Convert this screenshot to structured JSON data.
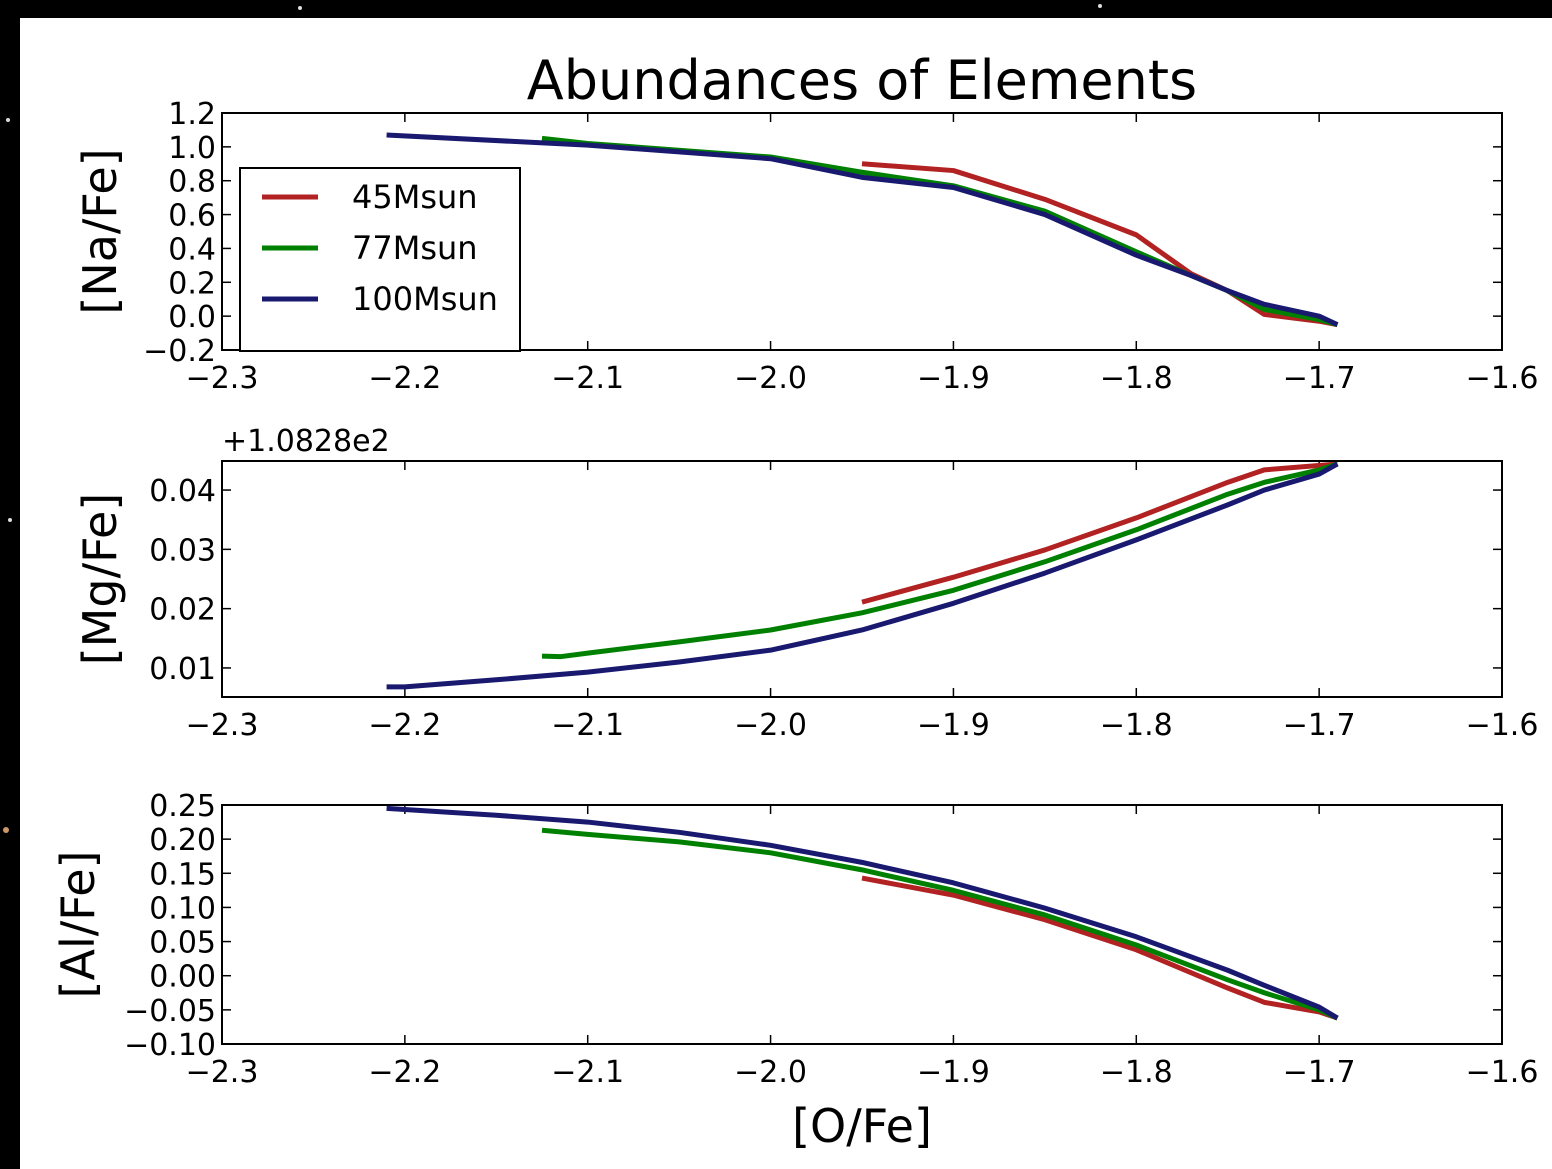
{
  "chart_data": [
    {
      "type": "line",
      "title": "Abundances of Elements",
      "ylabel": "[Na/Fe]",
      "xlim": [
        -2.3,
        -1.6
      ],
      "xticks": [
        {
          "value": -2.3,
          "label": "−2.3"
        },
        {
          "value": -2.2,
          "label": "−2.2"
        },
        {
          "value": -2.1,
          "label": "−2.1"
        },
        {
          "value": -2.0,
          "label": "−2.0"
        },
        {
          "value": -1.9,
          "label": "−1.9"
        },
        {
          "value": -1.8,
          "label": "−1.8"
        },
        {
          "value": -1.7,
          "label": "−1.7"
        },
        {
          "value": -1.6,
          "label": "−1.6"
        }
      ],
      "ylim": [
        -0.2,
        1.2
      ],
      "yticks": [
        {
          "value": -0.2,
          "label": "−0.2"
        },
        {
          "value": 0,
          "label": "0.0"
        },
        0.2,
        0.4,
        0.6,
        0.8,
        {
          "value": 1,
          "label": "1.0"
        },
        1.2
      ],
      "legend": "upper left",
      "series": [
        {
          "name": "45Msun",
          "color": "#b22222",
          "x": [
            -1.95,
            -1.9,
            -1.85,
            -1.8,
            -1.77,
            -1.75,
            -1.73,
            -1.7,
            -1.69
          ],
          "values": [
            0.9,
            0.86,
            0.69,
            0.48,
            0.25,
            0.15,
            0.01,
            -0.03,
            -0.05
          ]
        },
        {
          "name": "77Msun",
          "color": "#008000",
          "x": [
            -2.125,
            -2.1,
            -2.0,
            -1.95,
            -1.9,
            -1.85,
            -1.8,
            -1.77,
            -1.75,
            -1.73,
            -1.7,
            -1.69
          ],
          "values": [
            1.05,
            1.02,
            0.94,
            0.85,
            0.77,
            0.62,
            0.38,
            0.24,
            0.15,
            0.04,
            -0.02,
            -0.05
          ]
        },
        {
          "name": "100Msun",
          "color": "#191970",
          "x": [
            -2.21,
            -2.1,
            -2.0,
            -1.95,
            -1.9,
            -1.85,
            -1.8,
            -1.77,
            -1.75,
            -1.73,
            -1.7,
            -1.69
          ],
          "values": [
            1.07,
            1.01,
            0.93,
            0.82,
            0.76,
            0.6,
            0.36,
            0.24,
            0.15,
            0.07,
            0.0,
            -0.05
          ]
        }
      ]
    },
    {
      "type": "line",
      "ylabel": "[Mg/Fe]",
      "offset_text": "+1.0828e2",
      "xlim": [
        -2.3,
        -1.6
      ],
      "xticks": [
        {
          "value": -2.3,
          "label": "−2.3"
        },
        {
          "value": -2.2,
          "label": "−2.2"
        },
        {
          "value": -2.1,
          "label": "−2.1"
        },
        {
          "value": -2.0,
          "label": "−2.0"
        },
        {
          "value": -1.9,
          "label": "−1.9"
        },
        {
          "value": -1.8,
          "label": "−1.8"
        },
        {
          "value": -1.7,
          "label": "−1.7"
        },
        {
          "value": -1.6,
          "label": "−1.6"
        }
      ],
      "ylim": [
        0.0051,
        0.0449
      ],
      "yticks": [
        0.01,
        0.02,
        0.03,
        0.04
      ],
      "series": [
        {
          "color": "#b22222",
          "x": [
            -1.95,
            -1.9,
            -1.85,
            -1.8,
            -1.75,
            -1.73,
            -1.69
          ],
          "values": [
            0.0211,
            0.0253,
            0.0299,
            0.0353,
            0.0413,
            0.0434,
            0.0444
          ]
        },
        {
          "color": "#008000",
          "x": [
            -2.125,
            -2.115,
            -2.1,
            -2.05,
            -2.0,
            -1.95,
            -1.9,
            -1.85,
            -1.8,
            -1.75,
            -1.73,
            -1.7,
            -1.69
          ],
          "values": [
            0.012,
            0.0119,
            0.0125,
            0.0144,
            0.0164,
            0.0193,
            0.0231,
            0.0279,
            0.0333,
            0.0393,
            0.0413,
            0.0434,
            0.0444
          ]
        },
        {
          "color": "#191970",
          "x": [
            -2.21,
            -2.2,
            -2.15,
            -2.1,
            -2.05,
            -2.0,
            -1.95,
            -1.9,
            -1.85,
            -1.8,
            -1.75,
            -1.73,
            -1.7,
            -1.69
          ],
          "values": [
            0.0068,
            0.0068,
            0.008,
            0.0093,
            0.011,
            0.013,
            0.0164,
            0.0209,
            0.026,
            0.0316,
            0.0375,
            0.04,
            0.0427,
            0.0444
          ]
        }
      ]
    },
    {
      "type": "line",
      "ylabel": "[Al/Fe]",
      "xlabel": "[O/Fe]",
      "xlim": [
        -2.3,
        -1.6
      ],
      "xticks": [
        {
          "value": -2.3,
          "label": "−2.3"
        },
        {
          "value": -2.2,
          "label": "−2.2"
        },
        {
          "value": -2.1,
          "label": "−2.1"
        },
        {
          "value": -2.0,
          "label": "−2.0"
        },
        {
          "value": -1.9,
          "label": "−1.9"
        },
        {
          "value": -1.8,
          "label": "−1.8"
        },
        {
          "value": -1.7,
          "label": "−1.7"
        },
        {
          "value": -1.6,
          "label": "−1.6"
        }
      ],
      "ylim": [
        -0.1,
        0.25
      ],
      "yticks": [
        {
          "value": -0.1,
          "label": "−0.10"
        },
        {
          "value": -0.05,
          "label": "−0.05"
        },
        {
          "value": 0,
          "label": "0.00"
        },
        0.05,
        {
          "value": 0.1,
          "label": "0.10"
        },
        0.15,
        {
          "value": 0.2,
          "label": "0.20"
        },
        0.25
      ],
      "series": [
        {
          "color": "#b22222",
          "x": [
            -1.95,
            -1.9,
            -1.85,
            -1.8,
            -1.75,
            -1.73,
            -1.7,
            -1.69
          ],
          "values": [
            0.143,
            0.118,
            0.082,
            0.038,
            -0.018,
            -0.039,
            -0.053,
            -0.062
          ]
        },
        {
          "color": "#008000",
          "x": [
            -2.125,
            -2.1,
            -2.05,
            -2.0,
            -1.95,
            -1.9,
            -1.85,
            -1.8,
            -1.75,
            -1.73,
            -1.7,
            -1.69
          ],
          "values": [
            0.213,
            0.207,
            0.196,
            0.18,
            0.155,
            0.125,
            0.089,
            0.045,
            -0.006,
            -0.025,
            -0.05,
            -0.062
          ]
        },
        {
          "color": "#191970",
          "x": [
            -2.21,
            -2.15,
            -2.1,
            -2.05,
            -2.0,
            -1.95,
            -1.9,
            -1.85,
            -1.8,
            -1.75,
            -1.73,
            -1.7,
            -1.69
          ],
          "values": [
            0.245,
            0.235,
            0.225,
            0.21,
            0.191,
            0.166,
            0.136,
            0.099,
            0.057,
            0.008,
            -0.014,
            -0.046,
            -0.062
          ]
        }
      ]
    }
  ]
}
